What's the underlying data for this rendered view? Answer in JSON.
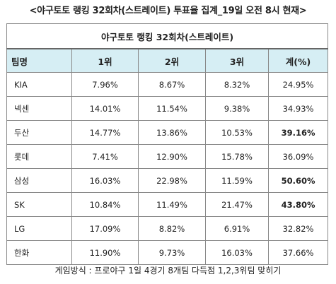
{
  "headline": "<야구토토 랭킹 32회차(스트레이트) 투표율 집계_19일 오전 8시 현재>",
  "table": {
    "caption": "야구토토 랭킹 32회차(스트레이트)",
    "headers": [
      "팀명",
      "1위",
      "2위",
      "3위",
      "계(%)"
    ],
    "rows": [
      {
        "team": "KIA",
        "first": "7.96%",
        "second": "8.67%",
        "third": "8.32%",
        "total": "24.95%",
        "total_bold": false
      },
      {
        "team": "넥센",
        "first": "14.01%",
        "second": "11.54%",
        "third": "9.38%",
        "total": "34.93%",
        "total_bold": false
      },
      {
        "team": "두산",
        "first": "14.77%",
        "second": "13.86%",
        "third": "10.53%",
        "total": "39.16%",
        "total_bold": true
      },
      {
        "team": "롯데",
        "first": "7.41%",
        "second": "12.90%",
        "third": "15.78%",
        "total": "36.09%",
        "total_bold": false
      },
      {
        "team": "삼성",
        "first": "16.03%",
        "second": "22.98%",
        "third": "11.59%",
        "total": "50.60%",
        "total_bold": true
      },
      {
        "team": "SK",
        "first": "10.84%",
        "second": "11.49%",
        "third": "21.47%",
        "total": "43.80%",
        "total_bold": true
      },
      {
        "team": "LG",
        "first": "17.09%",
        "second": "8.82%",
        "third": "6.91%",
        "total": "32.82%",
        "total_bold": false
      },
      {
        "team": "한화",
        "first": "11.90%",
        "second": "9.73%",
        "third": "16.03%",
        "total": "37.66%",
        "total_bold": false
      }
    ]
  },
  "note": "게임방식 : 프로야구 1일 4경기 8개팀 다득점 1,2,3위팀 맞히기",
  "colors": {
    "header_bg": "#d6eef4",
    "border": "#888888"
  }
}
